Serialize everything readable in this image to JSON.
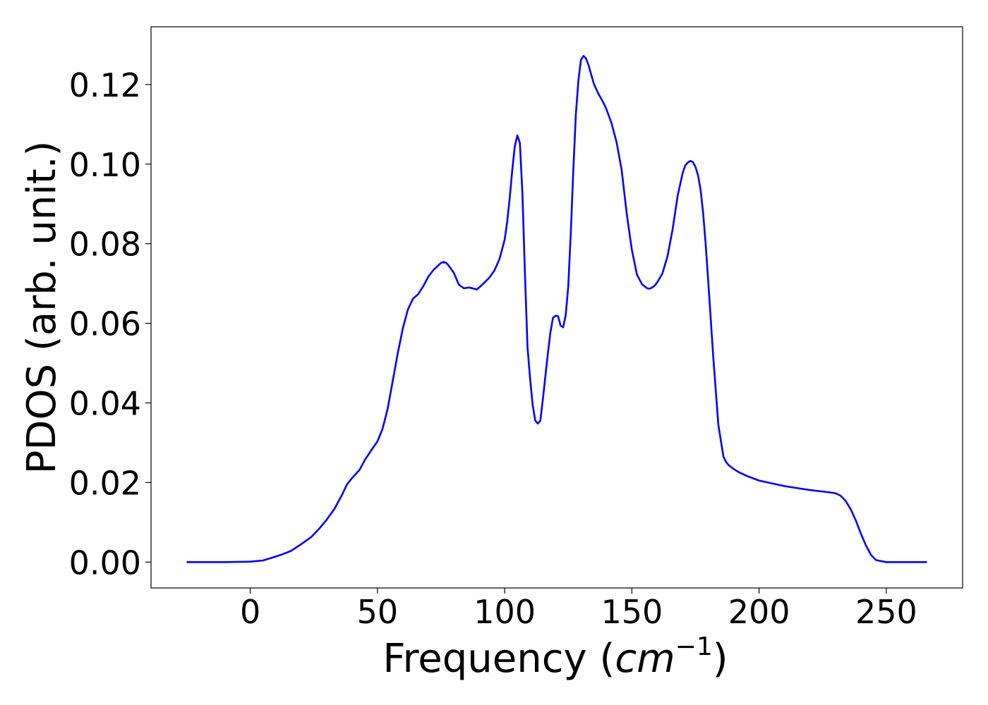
{
  "chart_data": {
    "type": "line",
    "title": "",
    "xlabel": "Frequency",
    "xlabel_math": "cm",
    "xlabel_exp": "−1",
    "ylabel": "PDOS (arb. unit.)",
    "xlim": [
      -39,
      280
    ],
    "ylim": [
      -0.0065,
      0.1345
    ],
    "xticks": [
      0,
      50,
      100,
      150,
      200,
      250
    ],
    "xtick_labels": [
      "0",
      "50",
      "100",
      "150",
      "200",
      "250"
    ],
    "yticks": [
      0.0,
      0.02,
      0.04,
      0.06,
      0.08,
      0.1,
      0.12
    ],
    "ytick_labels": [
      "0.00",
      "0.02",
      "0.04",
      "0.06",
      "0.08",
      "0.10",
      "0.12"
    ],
    "grid": false,
    "legend": false,
    "series": [
      {
        "color": "#0000ff",
        "x": [
          -25,
          -10,
          0,
          5,
          8,
          12,
          16,
          20,
          24,
          27,
          30,
          33,
          36,
          38,
          40,
          43,
          45,
          48,
          50,
          52,
          54,
          56,
          58,
          60,
          62,
          64,
          66,
          68,
          70,
          72,
          74,
          75,
          76,
          77,
          78,
          80,
          82,
          84,
          86,
          88,
          89,
          90,
          92,
          94,
          96,
          98,
          100,
          101,
          102,
          103,
          104,
          105,
          106,
          107,
          108,
          109,
          110,
          111,
          112,
          113,
          114,
          115,
          116,
          117,
          118,
          119,
          120,
          121,
          122,
          123,
          124,
          125,
          126,
          127,
          128,
          129,
          130,
          131,
          132,
          133,
          134,
          135,
          136,
          137,
          138,
          139,
          140,
          142,
          144,
          146,
          148,
          150,
          152,
          154,
          156,
          157,
          158,
          159,
          160,
          162,
          164,
          166,
          168,
          170,
          171,
          172,
          173,
          174,
          175,
          176,
          177,
          178,
          179,
          180,
          182,
          184,
          186,
          187,
          188,
          190,
          192,
          195,
          200,
          210,
          220,
          228,
          230,
          232,
          234,
          236,
          238,
          240,
          242,
          244,
          246,
          250,
          260,
          266
        ],
        "y": [
          0.0,
          0.0,
          0.0001,
          0.0004,
          0.001,
          0.0018,
          0.0028,
          0.0045,
          0.0063,
          0.0083,
          0.0106,
          0.0133,
          0.0168,
          0.0195,
          0.0211,
          0.0232,
          0.0256,
          0.0285,
          0.0303,
          0.0335,
          0.0385,
          0.0455,
          0.0525,
          0.0588,
          0.0635,
          0.0662,
          0.0673,
          0.0693,
          0.0717,
          0.0734,
          0.0746,
          0.0752,
          0.0754,
          0.0752,
          0.0745,
          0.0727,
          0.0697,
          0.0688,
          0.069,
          0.0687,
          0.0685,
          0.069,
          0.0702,
          0.0715,
          0.0733,
          0.0762,
          0.081,
          0.0855,
          0.0915,
          0.0985,
          0.1045,
          0.1072,
          0.1053,
          0.0925,
          0.0722,
          0.054,
          0.0462,
          0.0395,
          0.0356,
          0.0348,
          0.0355,
          0.0408,
          0.0467,
          0.0525,
          0.0578,
          0.0614,
          0.0619,
          0.0618,
          0.0594,
          0.059,
          0.062,
          0.0692,
          0.0826,
          0.0985,
          0.1125,
          0.121,
          0.1262,
          0.1272,
          0.1265,
          0.1248,
          0.1225,
          0.1203,
          0.1188,
          0.1175,
          0.1164,
          0.1152,
          0.1138,
          0.1103,
          0.1055,
          0.0985,
          0.0875,
          0.0785,
          0.0722,
          0.0698,
          0.0688,
          0.0687,
          0.069,
          0.0695,
          0.0703,
          0.0725,
          0.0768,
          0.0835,
          0.092,
          0.0978,
          0.0997,
          0.1004,
          0.1008,
          0.1005,
          0.0993,
          0.0972,
          0.0936,
          0.0878,
          0.08,
          0.0708,
          0.0515,
          0.0345,
          0.0265,
          0.0252,
          0.0244,
          0.0234,
          0.0226,
          0.0217,
          0.0205,
          0.0191,
          0.0181,
          0.0175,
          0.0173,
          0.0167,
          0.0154,
          0.0133,
          0.0105,
          0.0072,
          0.0042,
          0.0018,
          0.0005,
          0.0,
          0.0,
          0.0
        ]
      }
    ]
  }
}
